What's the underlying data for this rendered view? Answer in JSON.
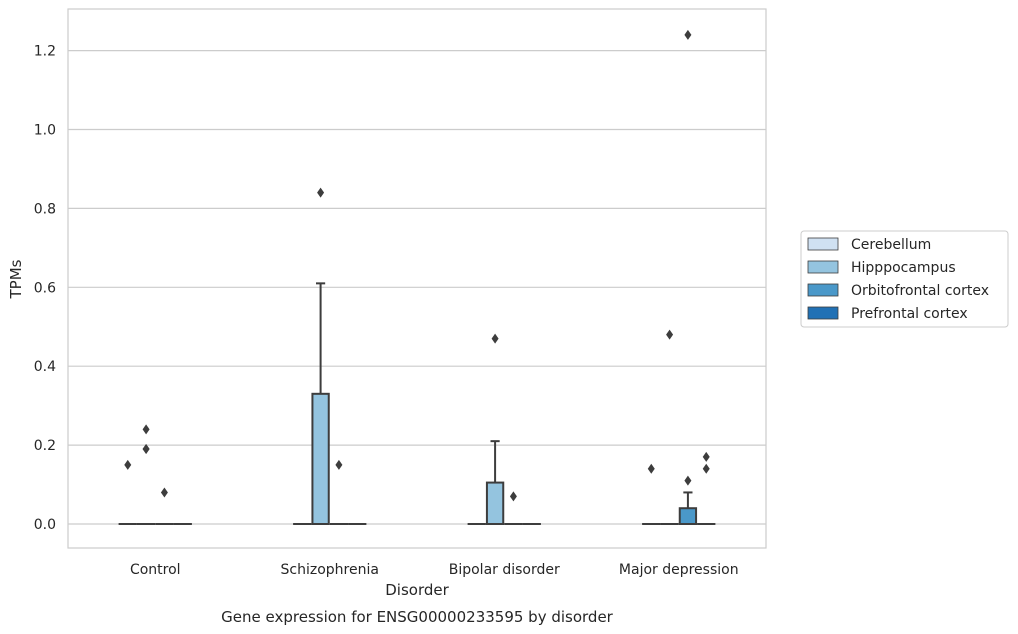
{
  "chart_data": {
    "type": "box",
    "caption": "Gene expression for ENSG00000233595 by disorder",
    "xlabel": "Disorder",
    "ylabel": "TPMs",
    "ylim": [
      -0.06,
      1.3
    ],
    "yticks": [
      "0.0",
      "0.2",
      "0.4",
      "0.6",
      "0.8",
      "1.0",
      "1.2"
    ],
    "grid": true,
    "legend_position": "right",
    "categories": [
      "Control",
      "Schizophrenia",
      "Bipolar disorder",
      "Major depression"
    ],
    "series": [
      {
        "name": "Cerebellum",
        "color": "#d0e1f2",
        "boxes": [
          {
            "category": "Control",
            "q1": 0,
            "median": 0,
            "q3": 0,
            "whisker_low": 0,
            "whisker_high": 0,
            "outliers": [
              0.15
            ]
          },
          {
            "category": "Schizophrenia",
            "q1": 0,
            "median": 0,
            "q3": 0,
            "whisker_low": 0,
            "whisker_high": 0,
            "outliers": []
          },
          {
            "category": "Bipolar disorder",
            "q1": 0,
            "median": 0,
            "q3": 0,
            "whisker_low": 0,
            "whisker_high": 0,
            "outliers": []
          },
          {
            "category": "Major depression",
            "q1": 0,
            "median": 0,
            "q3": 0,
            "whisker_low": 0,
            "whisker_high": 0,
            "outliers": [
              0.14
            ]
          }
        ]
      },
      {
        "name": "Hipppocampus",
        "color": "#94c4df",
        "boxes": [
          {
            "category": "Control",
            "q1": 0,
            "median": 0,
            "q3": 0,
            "whisker_low": 0,
            "whisker_high": 0,
            "outliers": [
              0.24,
              0.19,
              0.19
            ]
          },
          {
            "category": "Schizophrenia",
            "q1": 0,
            "median": 0,
            "q3": 0.33,
            "whisker_low": 0,
            "whisker_high": 0.61,
            "outliers": [
              0.84
            ]
          },
          {
            "category": "Bipolar disorder",
            "q1": 0,
            "median": 0,
            "q3": 0.105,
            "whisker_low": 0,
            "whisker_high": 0.21,
            "outliers": [
              0.47
            ]
          },
          {
            "category": "Major depression",
            "q1": 0,
            "median": 0,
            "q3": 0,
            "whisker_low": 0,
            "whisker_high": 0,
            "outliers": [
              0.48
            ]
          }
        ]
      },
      {
        "name": "Orbitofrontal cortex",
        "color": "#4a98c9",
        "boxes": [
          {
            "category": "Control",
            "q1": 0,
            "median": 0,
            "q3": 0,
            "whisker_low": 0,
            "whisker_high": 0,
            "outliers": [
              0.08
            ]
          },
          {
            "category": "Schizophrenia",
            "q1": 0,
            "median": 0,
            "q3": 0,
            "whisker_low": 0,
            "whisker_high": 0,
            "outliers": [
              0.15
            ]
          },
          {
            "category": "Bipolar disorder",
            "q1": 0,
            "median": 0,
            "q3": 0,
            "whisker_low": 0,
            "whisker_high": 0,
            "outliers": [
              0.07
            ]
          },
          {
            "category": "Major depression",
            "q1": 0,
            "median": 0,
            "q3": 0.04,
            "whisker_low": 0,
            "whisker_high": 0.08,
            "outliers": [
              0.11,
              1.24
            ]
          }
        ]
      },
      {
        "name": "Prefrontal cortex",
        "color": "#2171b5",
        "boxes": [
          {
            "category": "Control",
            "q1": 0,
            "median": 0,
            "q3": 0,
            "whisker_low": 0,
            "whisker_high": 0,
            "outliers": []
          },
          {
            "category": "Schizophrenia",
            "q1": 0,
            "median": 0,
            "q3": 0,
            "whisker_low": 0,
            "whisker_high": 0,
            "outliers": []
          },
          {
            "category": "Bipolar disorder",
            "q1": 0,
            "median": 0,
            "q3": 0,
            "whisker_low": 0,
            "whisker_high": 0,
            "outliers": []
          },
          {
            "category": "Major depression",
            "q1": 0,
            "median": 0,
            "q3": 0,
            "whisker_low": 0,
            "whisker_high": 0,
            "outliers": [
              0.17,
              0.14
            ]
          }
        ]
      }
    ]
  }
}
